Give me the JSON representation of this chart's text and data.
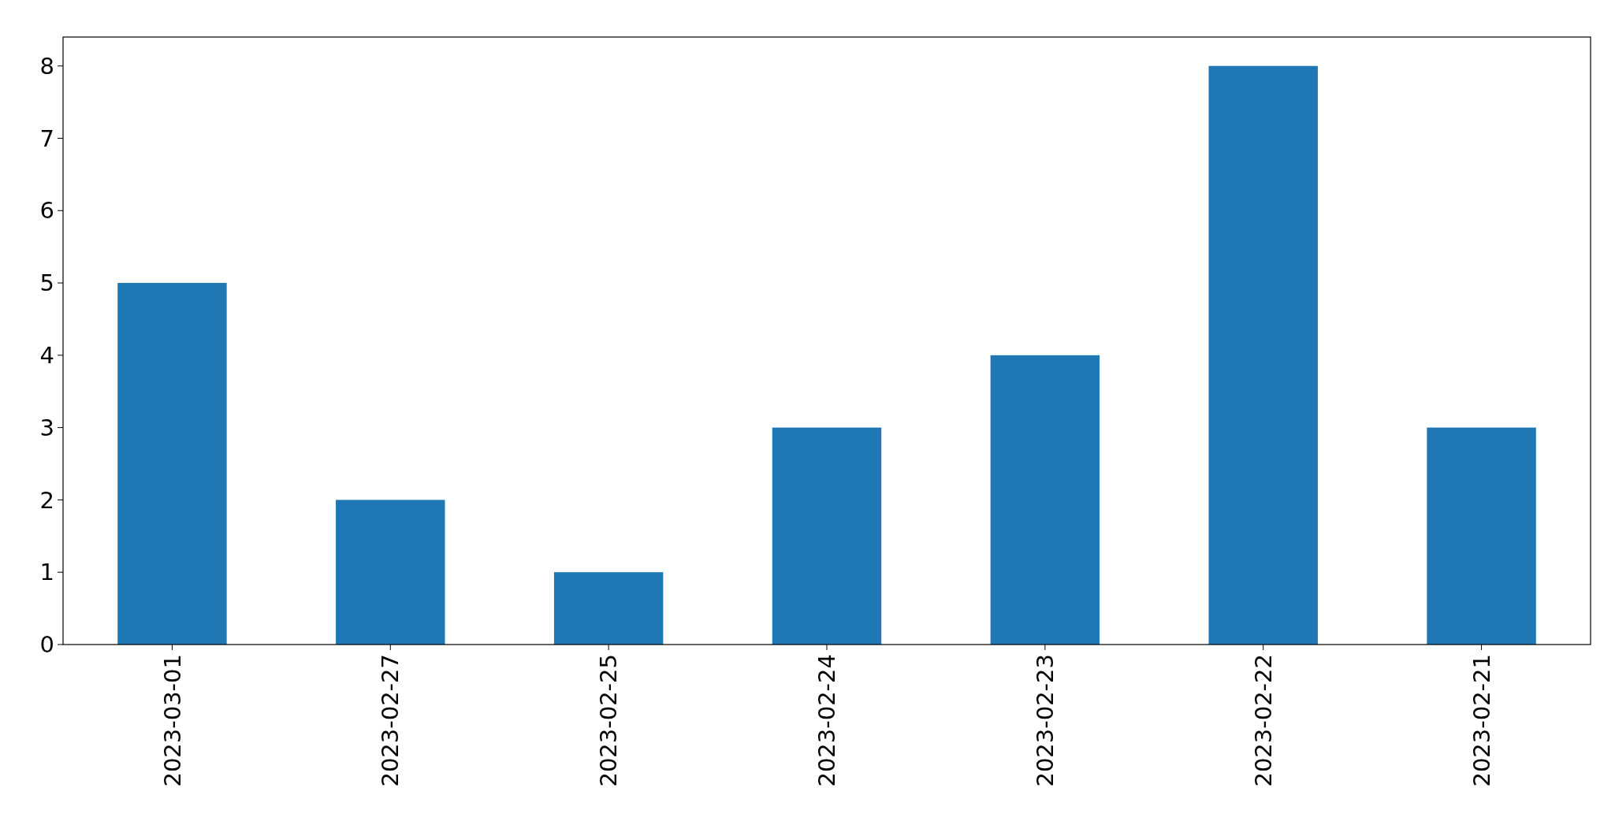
{
  "chart_data": {
    "type": "bar",
    "categories": [
      "2023-03-01",
      "2023-02-27",
      "2023-02-25",
      "2023-02-24",
      "2023-02-23",
      "2023-02-22",
      "2023-02-21"
    ],
    "values": [
      5,
      2,
      1,
      3,
      4,
      8,
      3
    ],
    "color": "#1f77b4",
    "ylim": [
      0,
      8.4
    ],
    "yticks": [
      0,
      1,
      2,
      3,
      4,
      5,
      6,
      7,
      8
    ],
    "grid": false
  }
}
